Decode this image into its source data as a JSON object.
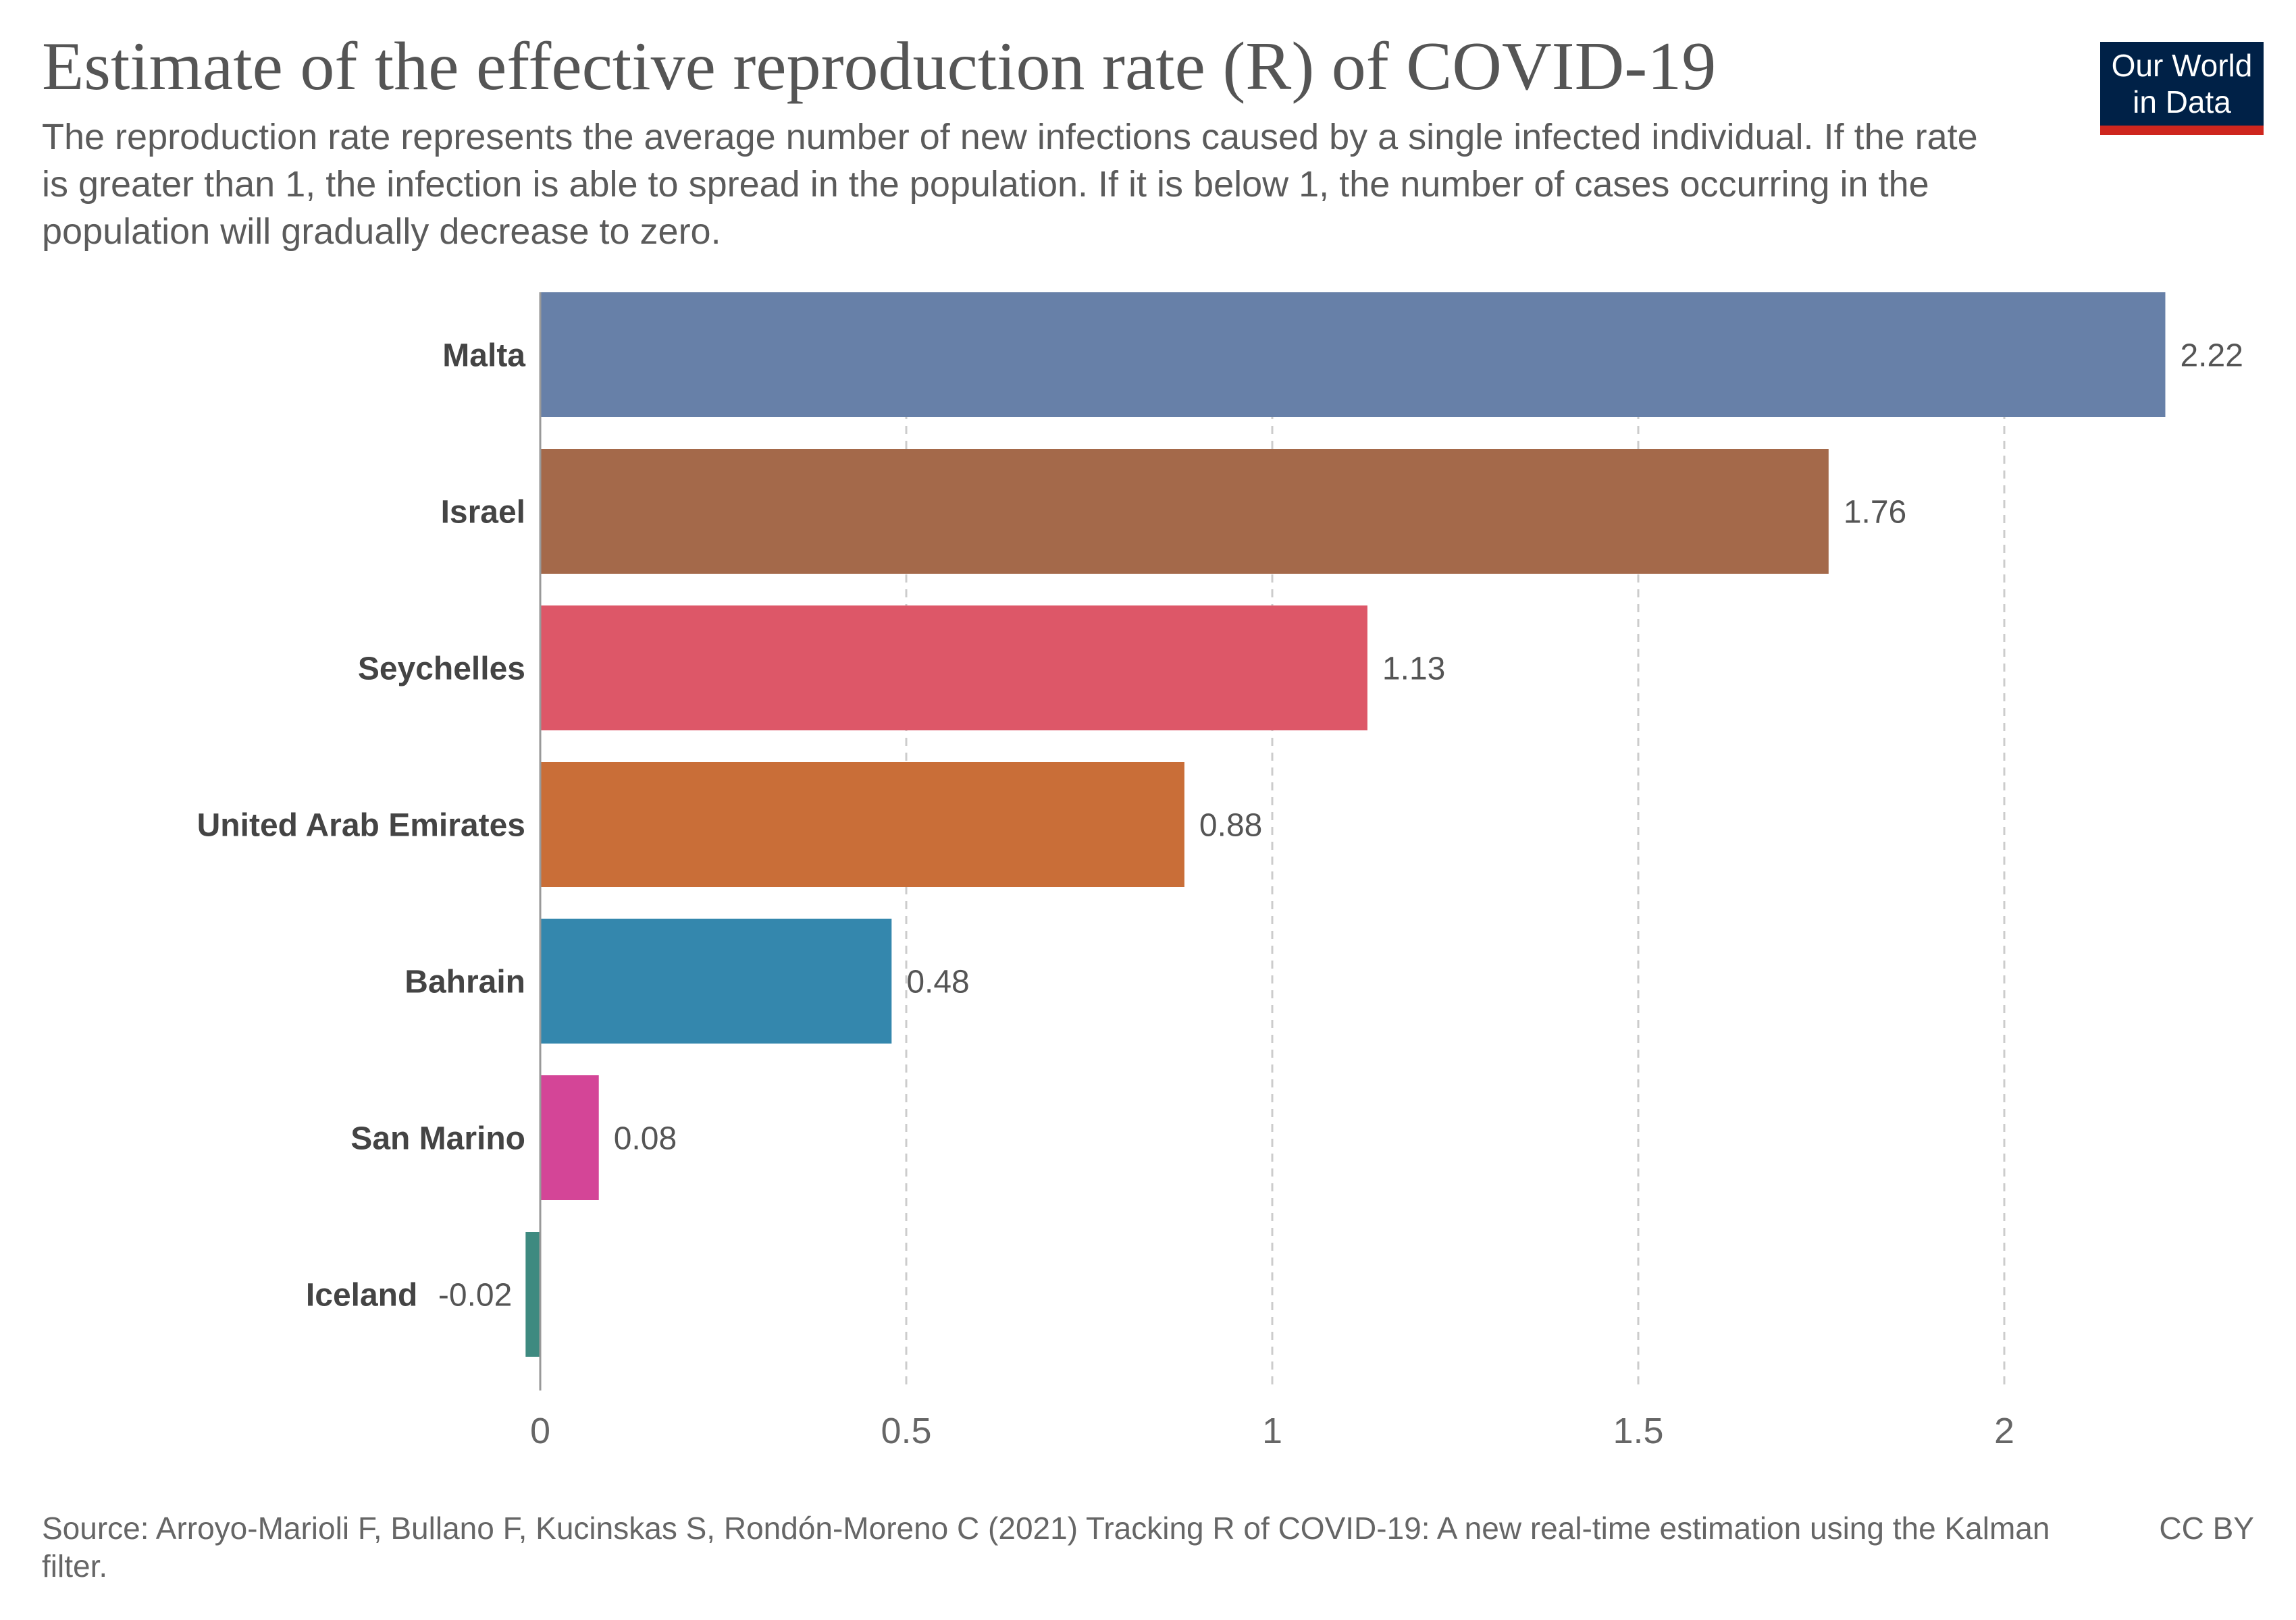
{
  "title": "Estimate of the effective reproduction rate (R) of COVID-19",
  "subtitle": "The reproduction rate represents the average number of new infections caused by a single infected individual. If the rate is greater than 1, the infection is able to spread in the population. If it is below 1, the number of cases occurring in the population will gradually decrease to zero.",
  "logo": {
    "line1": "Our World",
    "line2": "in Data",
    "bg_color": "#002147",
    "accent_color": "#ce261e"
  },
  "footer": {
    "source": "Source: Arroyo-Marioli F, Bullano F, Kucinskas S, Rondón-Moreno C (2021) Tracking R of COVID-19: A new real-time estimation using the Kalman filter.",
    "license": "CC BY"
  },
  "chart_data": {
    "type": "bar",
    "orientation": "horizontal",
    "categories": [
      "Malta",
      "Israel",
      "Seychelles",
      "United Arab Emirates",
      "Bahrain",
      "San Marino",
      "Iceland"
    ],
    "values": [
      2.22,
      1.76,
      1.13,
      0.88,
      0.48,
      0.08,
      -0.02
    ],
    "value_labels": [
      "2.22",
      "1.76",
      "1.13",
      "0.88",
      "0.48",
      "0.08",
      "-0.02"
    ],
    "colors": [
      "#6780a8",
      "#a4694a",
      "#dd5768",
      "#c96e38",
      "#3487ad",
      "#d44597",
      "#3e8a80"
    ],
    "xlim": [
      -0.02,
      2.22
    ],
    "xticks": [
      0,
      0.5,
      1,
      1.5,
      2
    ],
    "xtick_labels": [
      "0",
      "0.5",
      "1",
      "1.5",
      "2"
    ],
    "grid": "vertical dashed",
    "legend": "none"
  }
}
